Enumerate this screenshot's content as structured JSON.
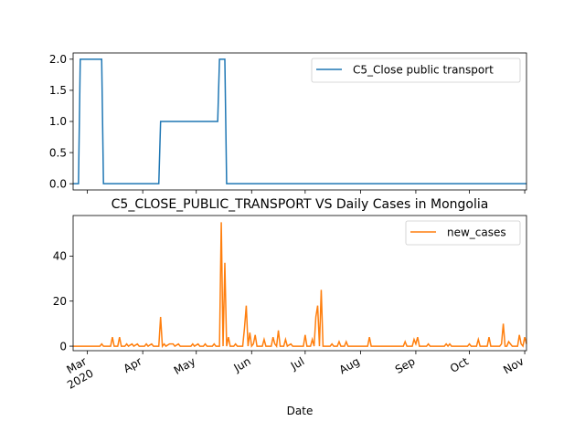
{
  "chart_data": [
    {
      "type": "line",
      "title": "",
      "xlabel": "",
      "ylabel": "",
      "ylim": [
        -0.1,
        2.1
      ],
      "yticks": [
        0.0,
        0.5,
        1.0,
        1.5,
        2.0
      ],
      "ytick_labels": [
        "0.0",
        "0.5",
        "1.0",
        "1.5",
        "2.0"
      ],
      "grid": false,
      "legend_position": "upper right",
      "series": [
        {
          "name": "C5_Close public transport",
          "color": "#1f77b4",
          "points": [
            [
              "2020-02-22",
              0
            ],
            [
              "2020-02-25",
              0
            ],
            [
              "2020-02-26",
              2
            ],
            [
              "2020-03-09",
              2
            ],
            [
              "2020-03-10",
              0
            ],
            [
              "2020-04-10",
              0
            ],
            [
              "2020-04-11",
              1
            ],
            [
              "2020-05-13",
              1
            ],
            [
              "2020-05-14",
              2
            ],
            [
              "2020-05-17",
              2
            ],
            [
              "2020-05-18",
              0
            ],
            [
              "2020-11-02",
              0
            ]
          ]
        }
      ]
    },
    {
      "type": "line",
      "title": "C5_CLOSE_PUBLIC_TRANSPORT VS Daily Cases in Mongolia",
      "xlabel": "Date",
      "ylabel": "",
      "ylim": [
        -2,
        58
      ],
      "yticks": [
        0,
        20,
        40
      ],
      "ytick_labels": [
        "0",
        "20",
        "40"
      ],
      "grid": false,
      "legend_position": "upper right",
      "x_range": [
        "2020-02-22",
        "2020-11-02"
      ],
      "xticks": [
        {
          "date": "2020-03-01",
          "label": "Mar",
          "sublabel": "2020"
        },
        {
          "date": "2020-04-01",
          "label": "Apr",
          "sublabel": ""
        },
        {
          "date": "2020-05-01",
          "label": "May",
          "sublabel": ""
        },
        {
          "date": "2020-06-01",
          "label": "Jun",
          "sublabel": ""
        },
        {
          "date": "2020-07-01",
          "label": "Jul",
          "sublabel": ""
        },
        {
          "date": "2020-08-01",
          "label": "Aug",
          "sublabel": ""
        },
        {
          "date": "2020-09-01",
          "label": "Sep",
          "sublabel": ""
        },
        {
          "date": "2020-10-01",
          "label": "Oct",
          "sublabel": ""
        },
        {
          "date": "2020-11-01",
          "label": "Nov",
          "sublabel": ""
        }
      ],
      "series": [
        {
          "name": "new_cases",
          "color": "#ff7f0e",
          "points": [
            [
              "2020-02-22",
              0
            ],
            [
              "2020-03-08",
              0
            ],
            [
              "2020-03-09",
              1
            ],
            [
              "2020-03-10",
              0
            ],
            [
              "2020-03-14",
              0
            ],
            [
              "2020-03-15",
              4
            ],
            [
              "2020-03-16",
              0
            ],
            [
              "2020-03-18",
              0
            ],
            [
              "2020-03-19",
              4
            ],
            [
              "2020-03-20",
              0
            ],
            [
              "2020-03-22",
              0
            ],
            [
              "2020-03-23",
              1
            ],
            [
              "2020-03-24",
              0
            ],
            [
              "2020-03-26",
              1
            ],
            [
              "2020-03-27",
              0
            ],
            [
              "2020-03-29",
              1
            ],
            [
              "2020-03-30",
              0
            ],
            [
              "2020-04-02",
              0
            ],
            [
              "2020-04-03",
              1
            ],
            [
              "2020-04-04",
              0
            ],
            [
              "2020-04-06",
              1
            ],
            [
              "2020-04-07",
              0
            ],
            [
              "2020-04-10",
              0
            ],
            [
              "2020-04-11",
              13
            ],
            [
              "2020-04-12",
              0
            ],
            [
              "2020-04-13",
              1
            ],
            [
              "2020-04-14",
              0
            ],
            [
              "2020-04-16",
              1
            ],
            [
              "2020-04-17",
              1
            ],
            [
              "2020-04-18",
              1
            ],
            [
              "2020-04-19",
              0
            ],
            [
              "2020-04-21",
              1
            ],
            [
              "2020-04-22",
              0
            ],
            [
              "2020-04-28",
              0
            ],
            [
              "2020-04-29",
              1
            ],
            [
              "2020-04-30",
              0
            ],
            [
              "2020-05-02",
              1
            ],
            [
              "2020-05-03",
              0
            ],
            [
              "2020-05-05",
              0
            ],
            [
              "2020-05-06",
              1
            ],
            [
              "2020-05-07",
              0
            ],
            [
              "2020-05-10",
              0
            ],
            [
              "2020-05-11",
              1
            ],
            [
              "2020-05-12",
              0
            ],
            [
              "2020-05-14",
              0
            ],
            [
              "2020-05-15",
              55
            ],
            [
              "2020-05-16",
              0
            ],
            [
              "2020-05-17",
              37
            ],
            [
              "2020-05-18",
              0
            ],
            [
              "2020-05-19",
              4
            ],
            [
              "2020-05-20",
              0
            ],
            [
              "2020-05-22",
              0
            ],
            [
              "2020-05-23",
              1
            ],
            [
              "2020-05-24",
              0
            ],
            [
              "2020-05-27",
              0
            ],
            [
              "2020-05-28",
              8
            ],
            [
              "2020-05-29",
              18
            ],
            [
              "2020-05-30",
              0
            ],
            [
              "2020-05-31",
              6
            ],
            [
              "2020-06-01",
              0
            ],
            [
              "2020-06-02",
              1
            ],
            [
              "2020-06-03",
              5
            ],
            [
              "2020-06-04",
              0
            ],
            [
              "2020-06-07",
              0
            ],
            [
              "2020-06-08",
              3
            ],
            [
              "2020-06-09",
              0
            ],
            [
              "2020-06-12",
              0
            ],
            [
              "2020-06-13",
              4
            ],
            [
              "2020-06-14",
              1
            ],
            [
              "2020-06-15",
              0
            ],
            [
              "2020-06-16",
              7
            ],
            [
              "2020-06-17",
              0
            ],
            [
              "2020-06-19",
              0
            ],
            [
              "2020-06-20",
              3
            ],
            [
              "2020-06-21",
              0
            ],
            [
              "2020-06-23",
              1
            ],
            [
              "2020-06-24",
              0
            ],
            [
              "2020-06-30",
              0
            ],
            [
              "2020-07-01",
              5
            ],
            [
              "2020-07-02",
              0
            ],
            [
              "2020-07-04",
              0
            ],
            [
              "2020-07-05",
              3
            ],
            [
              "2020-07-06",
              0
            ],
            [
              "2020-07-07",
              13
            ],
            [
              "2020-07-08",
              18
            ],
            [
              "2020-07-09",
              0
            ],
            [
              "2020-07-10",
              25
            ],
            [
              "2020-07-11",
              0
            ],
            [
              "2020-07-15",
              0
            ],
            [
              "2020-07-16",
              1
            ],
            [
              "2020-07-17",
              0
            ],
            [
              "2020-07-19",
              0
            ],
            [
              "2020-07-20",
              2
            ],
            [
              "2020-07-21",
              0
            ],
            [
              "2020-07-23",
              0
            ],
            [
              "2020-07-24",
              2
            ],
            [
              "2020-07-25",
              0
            ],
            [
              "2020-08-05",
              0
            ],
            [
              "2020-08-06",
              4
            ],
            [
              "2020-08-07",
              0
            ],
            [
              "2020-08-25",
              0
            ],
            [
              "2020-08-26",
              2
            ],
            [
              "2020-08-27",
              0
            ],
            [
              "2020-08-30",
              0
            ],
            [
              "2020-08-31",
              3
            ],
            [
              "2020-09-01",
              1
            ],
            [
              "2020-09-02",
              4
            ],
            [
              "2020-09-03",
              0
            ],
            [
              "2020-09-07",
              0
            ],
            [
              "2020-09-08",
              1
            ],
            [
              "2020-09-09",
              0
            ],
            [
              "2020-09-17",
              0
            ],
            [
              "2020-09-18",
              1
            ],
            [
              "2020-09-19",
              0
            ],
            [
              "2020-09-20",
              1
            ],
            [
              "2020-09-21",
              0
            ],
            [
              "2020-09-30",
              0
            ],
            [
              "2020-10-01",
              1
            ],
            [
              "2020-10-02",
              0
            ],
            [
              "2020-10-05",
              0
            ],
            [
              "2020-10-06",
              3
            ],
            [
              "2020-10-07",
              0
            ],
            [
              "2020-10-11",
              0
            ],
            [
              "2020-10-12",
              4
            ],
            [
              "2020-10-13",
              0
            ],
            [
              "2020-10-18",
              0
            ],
            [
              "2020-10-19",
              1
            ],
            [
              "2020-10-20",
              10
            ],
            [
              "2020-10-21",
              0
            ],
            [
              "2020-10-22",
              0
            ],
            [
              "2020-10-23",
              2
            ],
            [
              "2020-10-24",
              1
            ],
            [
              "2020-10-25",
              0
            ],
            [
              "2020-10-28",
              0
            ],
            [
              "2020-10-29",
              5
            ],
            [
              "2020-10-30",
              1
            ],
            [
              "2020-10-31",
              0
            ],
            [
              "2020-11-01",
              4
            ],
            [
              "2020-11-02",
              1
            ]
          ]
        }
      ]
    }
  ]
}
